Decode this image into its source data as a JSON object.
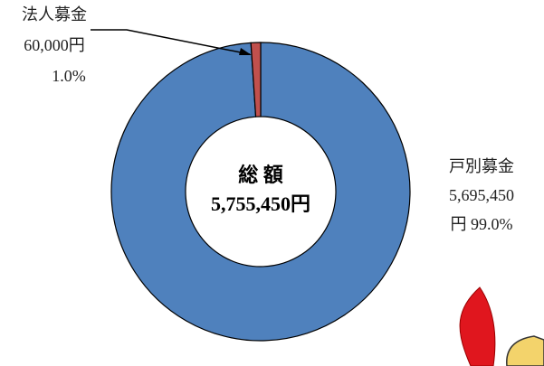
{
  "chart_data": {
    "type": "donut",
    "categories": [
      "戸別募金",
      "法人募金"
    ],
    "values": [
      5695450,
      60000
    ],
    "value_labels": [
      "5,695,450",
      "60,000円"
    ],
    "percent_labels": [
      "円 99.0%",
      "1.0%"
    ],
    "colors": [
      "#4f81bd",
      "#c0504d"
    ],
    "center_title": "総 額",
    "center_value": "5,755,450円"
  }
}
